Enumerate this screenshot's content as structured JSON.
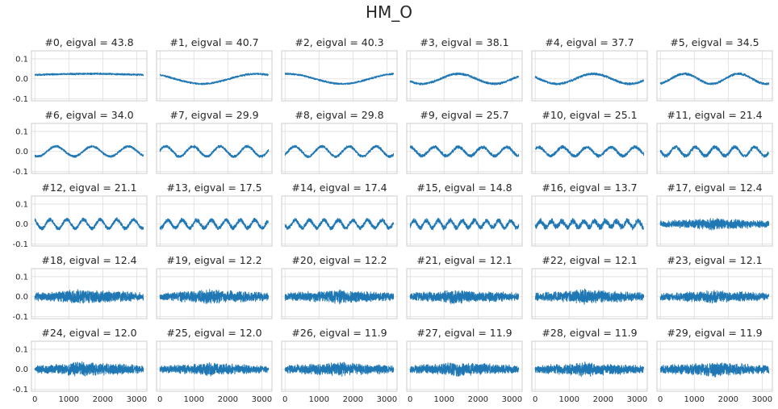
{
  "figure": {
    "suptitle": "HM_O"
  },
  "chart_data": {
    "type": "line",
    "title": "HM_O",
    "layout": "5 rows x 6 columns of line plots, shared axes",
    "grid": true,
    "xlim": [
      -100,
      3300
    ],
    "ylim": [
      -0.11,
      0.14
    ],
    "xticks": [
      0,
      1000,
      2000,
      3000
    ],
    "xtick_labels": [
      "0",
      "1000",
      "2000",
      "3000"
    ],
    "yticks": [
      -0.1,
      0.0,
      0.1
    ],
    "ytick_labels": [
      "-0.1",
      "0.0",
      "0.1"
    ],
    "n_samples": 3200,
    "color": "#1f77b4",
    "panels": [
      {
        "label": "#0, eigval = 43.8",
        "index": 0,
        "eigval": 43.8,
        "cycles": 0.5,
        "amplitude": 0.005,
        "offset": 0.02,
        "noise": 0.004
      },
      {
        "label": "#1, eigval = 40.7",
        "index": 1,
        "eigval": 40.7,
        "cycles": 1.0,
        "amplitude": 0.025,
        "offset": 0.0,
        "noise": 0.004
      },
      {
        "label": "#2, eigval = 40.3",
        "index": 2,
        "eigval": 40.3,
        "cycles": 1.0,
        "amplitude": 0.025,
        "offset": 0.0,
        "noise": 0.004
      },
      {
        "label": "#3, eigval = 38.1",
        "index": 3,
        "eigval": 38.1,
        "cycles": 1.5,
        "amplitude": 0.025,
        "offset": 0.0,
        "noise": 0.005
      },
      {
        "label": "#4, eigval = 37.7",
        "index": 4,
        "eigval": 37.7,
        "cycles": 1.5,
        "amplitude": 0.025,
        "offset": 0.0,
        "noise": 0.005
      },
      {
        "label": "#5, eigval = 34.5",
        "index": 5,
        "eigval": 34.5,
        "cycles": 2.0,
        "amplitude": 0.025,
        "offset": 0.0,
        "noise": 0.005
      },
      {
        "label": "#6, eigval = 34.0",
        "index": 6,
        "eigval": 34.0,
        "cycles": 3.0,
        "amplitude": 0.025,
        "offset": 0.0,
        "noise": 0.005
      },
      {
        "label": "#7, eigval = 29.9",
        "index": 7,
        "eigval": 29.9,
        "cycles": 4.0,
        "amplitude": 0.025,
        "offset": 0.0,
        "noise": 0.006
      },
      {
        "label": "#8, eigval = 29.8",
        "index": 8,
        "eigval": 29.8,
        "cycles": 4.0,
        "amplitude": 0.025,
        "offset": 0.0,
        "noise": 0.006
      },
      {
        "label": "#9, eigval = 25.7",
        "index": 9,
        "eigval": 25.7,
        "cycles": 4.5,
        "amplitude": 0.022,
        "offset": 0.0,
        "noise": 0.007
      },
      {
        "label": "#10, eigval = 25.1",
        "index": 10,
        "eigval": 25.1,
        "cycles": 4.5,
        "amplitude": 0.022,
        "offset": 0.0,
        "noise": 0.007
      },
      {
        "label": "#11, eigval = 21.4",
        "index": 11,
        "eigval": 21.4,
        "cycles": 5.5,
        "amplitude": 0.022,
        "offset": 0.0,
        "noise": 0.008
      },
      {
        "label": "#12, eigval = 21.1",
        "index": 12,
        "eigval": 21.1,
        "cycles": 6.5,
        "amplitude": 0.022,
        "offset": 0.0,
        "noise": 0.008
      },
      {
        "label": "#13, eigval = 17.5",
        "index": 13,
        "eigval": 17.5,
        "cycles": 7.5,
        "amplitude": 0.02,
        "offset": 0.0,
        "noise": 0.009
      },
      {
        "label": "#14, eigval = 17.4",
        "index": 14,
        "eigval": 17.4,
        "cycles": 7.5,
        "amplitude": 0.02,
        "offset": 0.0,
        "noise": 0.009
      },
      {
        "label": "#15, eigval = 14.8",
        "index": 15,
        "eigval": 14.8,
        "cycles": 9.0,
        "amplitude": 0.018,
        "offset": 0.0,
        "noise": 0.01
      },
      {
        "label": "#16, eigval = 13.7",
        "index": 16,
        "eigval": 13.7,
        "cycles": 10.0,
        "amplitude": 0.015,
        "offset": 0.0,
        "noise": 0.012
      },
      {
        "label": "#17, eigval = 12.4",
        "index": 17,
        "eigval": 12.4,
        "cycles": 0,
        "amplitude": 0.0,
        "offset": 0.0,
        "noise": 0.02
      },
      {
        "label": "#18, eigval = 12.4",
        "index": 18,
        "eigval": 12.4,
        "cycles": 0,
        "amplitude": 0.0,
        "offset": 0.0,
        "noise": 0.025
      },
      {
        "label": "#19, eigval = 12.2",
        "index": 19,
        "eigval": 12.2,
        "cycles": 0,
        "amplitude": 0.0,
        "offset": 0.0,
        "noise": 0.025
      },
      {
        "label": "#20, eigval = 12.2",
        "index": 20,
        "eigval": 12.2,
        "cycles": 0,
        "amplitude": 0.0,
        "offset": 0.0,
        "noise": 0.024
      },
      {
        "label": "#21, eigval = 12.1",
        "index": 21,
        "eigval": 12.1,
        "cycles": 0,
        "amplitude": 0.0,
        "offset": 0.0,
        "noise": 0.024
      },
      {
        "label": "#22, eigval = 12.1",
        "index": 22,
        "eigval": 12.1,
        "cycles": 0,
        "amplitude": 0.0,
        "offset": 0.0,
        "noise": 0.025
      },
      {
        "label": "#23, eigval = 12.1",
        "index": 23,
        "eigval": 12.1,
        "cycles": 0,
        "amplitude": 0.0,
        "offset": 0.0,
        "noise": 0.022
      },
      {
        "label": "#24, eigval = 12.0",
        "index": 24,
        "eigval": 12.0,
        "cycles": 0,
        "amplitude": 0.0,
        "offset": 0.0,
        "noise": 0.025
      },
      {
        "label": "#25, eigval = 12.0",
        "index": 25,
        "eigval": 12.0,
        "cycles": 0,
        "amplitude": 0.0,
        "offset": 0.0,
        "noise": 0.022
      },
      {
        "label": "#26, eigval = 11.9",
        "index": 26,
        "eigval": 11.9,
        "cycles": 0,
        "amplitude": 0.0,
        "offset": 0.0,
        "noise": 0.024
      },
      {
        "label": "#27, eigval = 11.9",
        "index": 27,
        "eigval": 11.9,
        "cycles": 0,
        "amplitude": 0.0,
        "offset": 0.0,
        "noise": 0.024
      },
      {
        "label": "#28, eigval = 11.9",
        "index": 28,
        "eigval": 11.9,
        "cycles": 0,
        "amplitude": 0.0,
        "offset": 0.0,
        "noise": 0.024
      },
      {
        "label": "#29, eigval = 11.9",
        "index": 29,
        "eigval": 11.9,
        "cycles": 0,
        "amplitude": 0.0,
        "offset": 0.0,
        "noise": 0.025
      }
    ]
  }
}
